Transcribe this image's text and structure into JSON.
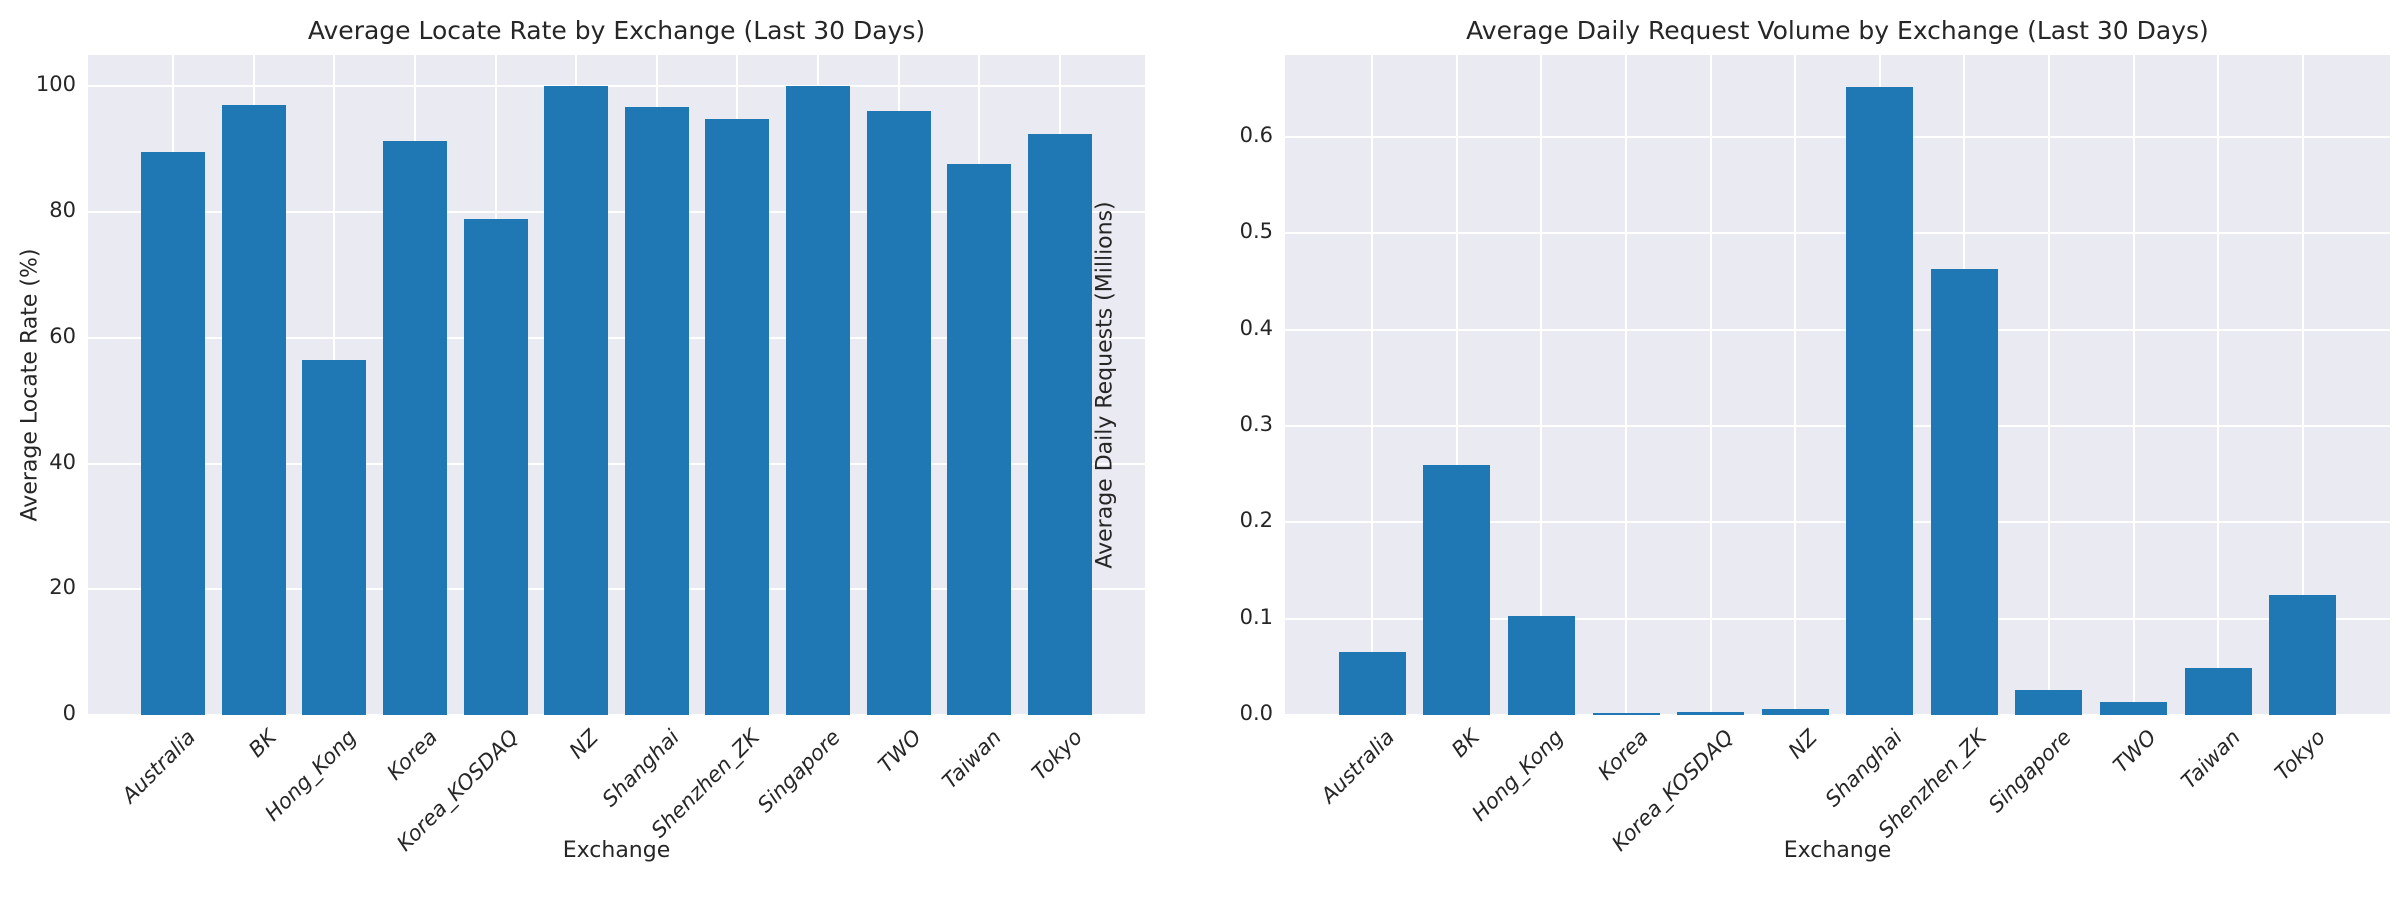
{
  "figure": {
    "background_color": "#ffffff",
    "plot_background_color": "#eaeaf2",
    "grid_color": "#ffffff",
    "bar_color": "#1f77b4",
    "text_color": "#262626"
  },
  "chart_data": [
    {
      "type": "bar",
      "title": "Average Locate Rate by Exchange (Last 30 Days)",
      "xlabel": "Exchange",
      "ylabel": "Average Locate Rate (%)",
      "categories": [
        "Australia",
        "BK",
        "Hong_Kong",
        "Korea",
        "Korea_KOSDAQ",
        "NZ",
        "Shanghai",
        "Shenzhen_ZK",
        "Singapore",
        "TWO",
        "Taiwan",
        "Tokyo"
      ],
      "values": [
        89.5,
        97.1,
        56.5,
        91.4,
        78.9,
        100.0,
        96.7,
        94.8,
        100.0,
        96.1,
        87.7,
        92.4
      ],
      "ylim": [
        0,
        105
      ],
      "yticks": [
        {
          "label": "0",
          "value": 0
        },
        {
          "label": "20",
          "value": 20
        },
        {
          "label": "40",
          "value": 40
        },
        {
          "label": "60",
          "value": 60
        },
        {
          "label": "80",
          "value": 80
        },
        {
          "label": "100",
          "value": 100
        }
      ],
      "grid": true,
      "legend": null,
      "xtick_rotation_deg": 45
    },
    {
      "type": "bar",
      "title": "Average Daily Request Volume by Exchange (Last 30 Days)",
      "xlabel": "Exchange",
      "ylabel": "Average Daily Requests (Millions)",
      "categories": [
        "Australia",
        "BK",
        "Hong_Kong",
        "Korea",
        "Korea_KOSDAQ",
        "NZ",
        "Shanghai",
        "Shenzhen_ZK",
        "Singapore",
        "TWO",
        "Taiwan",
        "Tokyo"
      ],
      "values": [
        0.065,
        0.26,
        0.103,
        0.002,
        0.003,
        0.006,
        0.652,
        0.463,
        0.026,
        0.014,
        0.049,
        0.125
      ],
      "ylim": [
        0,
        0.685
      ],
      "yticks": [
        {
          "label": "0.0",
          "value": 0.0
        },
        {
          "label": "0.1",
          "value": 0.1
        },
        {
          "label": "0.2",
          "value": 0.2
        },
        {
          "label": "0.3",
          "value": 0.3
        },
        {
          "label": "0.4",
          "value": 0.4
        },
        {
          "label": "0.5",
          "value": 0.5
        },
        {
          "label": "0.6",
          "value": 0.6
        }
      ],
      "grid": true,
      "legend": null,
      "xtick_rotation_deg": 45
    }
  ]
}
